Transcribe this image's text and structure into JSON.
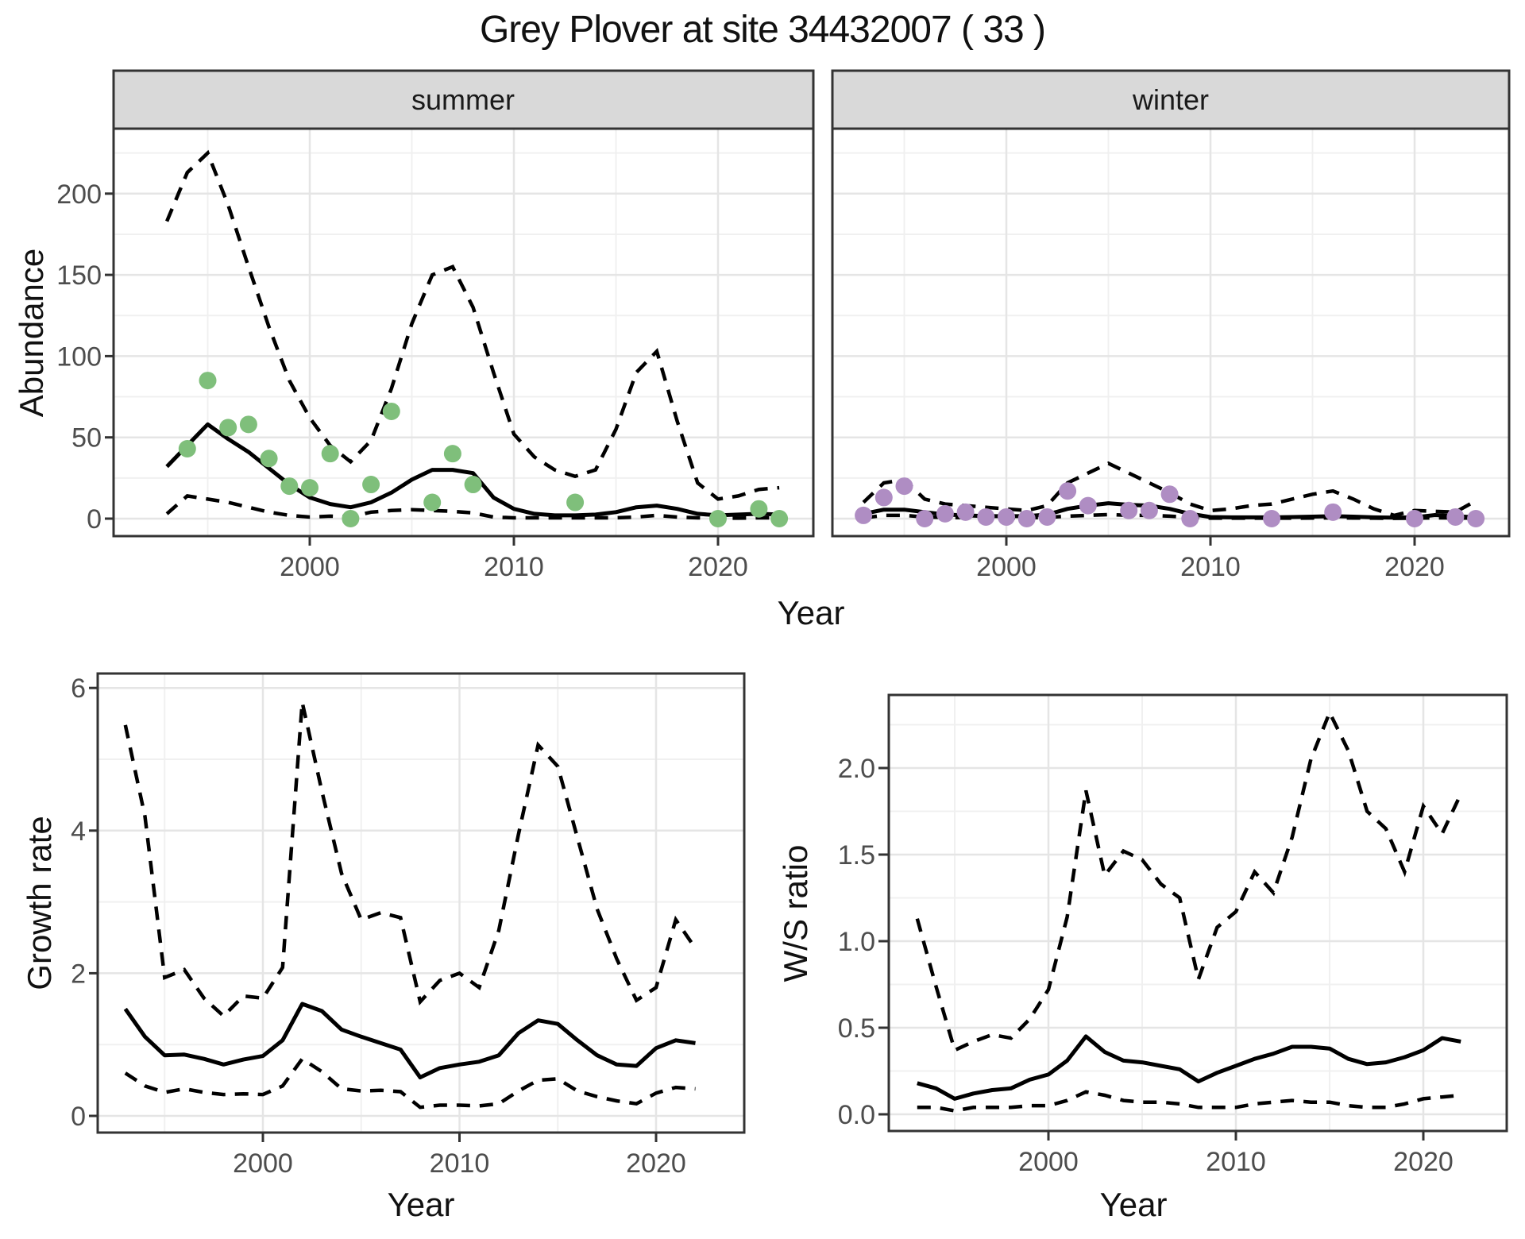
{
  "title": "Grey Plover at site 34432007 ( 33 )",
  "colors": {
    "summer_point": "#7fbf7b",
    "winter_point": "#af8dc3",
    "line": "#000000",
    "panel_border": "#333333",
    "strip_bg": "#d9d9d9",
    "grid_major": "#e5e5e5",
    "grid_minor": "#f0f0f0",
    "tick_text": "#4d4d4d",
    "tick_mark": "#333333"
  },
  "chart_data": [
    {
      "id": "abundance",
      "type": "line",
      "facets": [
        "summer",
        "winter"
      ],
      "xlabel": "Year",
      "ylabel": "Abundance",
      "x_ticks": [
        2000,
        2010,
        2020
      ],
      "x_tick_labels": [
        "2000",
        "2010",
        "2020"
      ],
      "x_minor": [
        1995,
        2005,
        2015,
        2025
      ],
      "y_ticks": [
        0,
        50,
        100,
        150,
        200
      ],
      "y_tick_labels": [
        "0",
        "50",
        "100",
        "150",
        "200"
      ],
      "y_minor": [
        25,
        75,
        125,
        175,
        225
      ],
      "xlim": [
        1990.4,
        2024.7
      ],
      "ylim": [
        -11,
        240
      ],
      "legend": "none",
      "grid": "on",
      "years": [
        1993,
        1994,
        1995,
        1996,
        1997,
        1998,
        1999,
        2000,
        2001,
        2002,
        2003,
        2004,
        2005,
        2006,
        2007,
        2008,
        2009,
        2010,
        2011,
        2012,
        2013,
        2014,
        2015,
        2016,
        2017,
        2018,
        2019,
        2020,
        2021,
        2022,
        2023
      ],
      "summer": {
        "upper": [
          183,
          213,
          225,
          193,
          155,
          118,
          85,
          62,
          45,
          35,
          48,
          80,
          120,
          150,
          155,
          130,
          90,
          52,
          38,
          30,
          26,
          30,
          55,
          90,
          103,
          60,
          22,
          12,
          14,
          18,
          19
        ],
        "mean": [
          32,
          45,
          58,
          49,
          41,
          31,
          21,
          13,
          9,
          7,
          10,
          16,
          24,
          30,
          30,
          28,
          13,
          6,
          3,
          2,
          2,
          2.5,
          4,
          7,
          8,
          6,
          3,
          2,
          2.5,
          3,
          2.5
        ],
        "lower": [
          3,
          14,
          12,
          10,
          7,
          4,
          2,
          1,
          1.5,
          1,
          4,
          5,
          5.5,
          5,
          4.5,
          3.5,
          1,
          0.5,
          0.5,
          0.5,
          0.5,
          0.5,
          0.5,
          1,
          2,
          1,
          0.5,
          0.3,
          0.3,
          0.5,
          0.5
        ],
        "points_years": [
          1994,
          1995,
          1996,
          1997,
          1998,
          1999,
          2000,
          2001,
          2002,
          2003,
          2004,
          2006,
          2007,
          2008,
          2013,
          2020,
          2022,
          2023
        ],
        "points_values": [
          43,
          85,
          56,
          58,
          37,
          20,
          19,
          40,
          0,
          21,
          66,
          10,
          40,
          21,
          10,
          0,
          6,
          0
        ]
      },
      "winter": {
        "upper": [
          10,
          22,
          24,
          12,
          9,
          8,
          7,
          6,
          5,
          8,
          22,
          28,
          34,
          28,
          22,
          16,
          9,
          5,
          6,
          8,
          9,
          12,
          15,
          17,
          12,
          6,
          2,
          5,
          4.5,
          4,
          11
        ],
        "mean": [
          3,
          5.5,
          5.5,
          4,
          2.5,
          2,
          1.5,
          1.5,
          1.5,
          2.5,
          6,
          8,
          9.5,
          8.5,
          8,
          6,
          3,
          1,
          0.8,
          0.8,
          0.8,
          1,
          1.2,
          1.5,
          1.2,
          0.8,
          0.6,
          0.8,
          2.2,
          1.5,
          0.8
        ],
        "lower": [
          0.5,
          2,
          2,
          1,
          0.8,
          0.6,
          0.5,
          0.5,
          0.5,
          0.8,
          1.5,
          2,
          2.5,
          2,
          2,
          1.5,
          0.8,
          0.3,
          0.3,
          0.3,
          0.3,
          0.3,
          0.4,
          0.5,
          0.4,
          0.3,
          0.2,
          0.3,
          0.5,
          0.4,
          0.3
        ],
        "points_years": [
          1993,
          1994,
          1995,
          1996,
          1997,
          1998,
          1999,
          2000,
          2001,
          2002,
          2003,
          2004,
          2006,
          2007,
          2008,
          2009,
          2013,
          2016,
          2020,
          2022,
          2023
        ],
        "points_values": [
          2,
          13,
          20,
          0,
          3,
          4,
          1,
          1,
          0,
          1,
          17,
          8,
          5,
          5,
          15,
          0,
          0,
          4,
          0,
          1,
          0
        ]
      }
    },
    {
      "id": "growth_rate",
      "type": "line",
      "xlabel": "Year",
      "ylabel": "Growth rate",
      "x_ticks": [
        2000,
        2010,
        2020
      ],
      "x_tick_labels": [
        "2000",
        "2010",
        "2020"
      ],
      "x_minor": [
        1995,
        2005,
        2015,
        2025
      ],
      "y_ticks": [
        0,
        2,
        4,
        6
      ],
      "y_tick_labels": [
        "0",
        "2",
        "4",
        "6"
      ],
      "y_minor": [
        1,
        3,
        5
      ],
      "xlim": [
        1991.6,
        2024.5
      ],
      "ylim": [
        -0.23,
        6.2
      ],
      "grid": "on",
      "years": [
        1993,
        1994,
        1995,
        1996,
        1997,
        1998,
        1999,
        2000,
        2001,
        2002,
        2003,
        2004,
        2005,
        2006,
        2007,
        2008,
        2009,
        2010,
        2011,
        2012,
        2013,
        2014,
        2015,
        2016,
        2017,
        2018,
        2019,
        2020,
        2021,
        2022
      ],
      "upper": [
        5.48,
        4.2,
        1.94,
        2.05,
        1.65,
        1.4,
        1.68,
        1.65,
        2.08,
        5.8,
        4.55,
        3.4,
        2.75,
        2.85,
        2.78,
        1.6,
        1.9,
        2.0,
        1.8,
        2.6,
        3.95,
        5.2,
        4.9,
        3.9,
        2.9,
        2.2,
        1.62,
        1.8,
        2.75,
        2.35
      ],
      "mean": [
        1.5,
        1.11,
        0.85,
        0.86,
        0.8,
        0.72,
        0.79,
        0.84,
        1.06,
        1.57,
        1.47,
        1.21,
        1.11,
        1.02,
        0.93,
        0.54,
        0.67,
        0.72,
        0.76,
        0.85,
        1.16,
        1.34,
        1.29,
        1.06,
        0.85,
        0.72,
        0.7,
        0.95,
        1.06,
        1.02
      ],
      "lower": [
        0.6,
        0.42,
        0.33,
        0.38,
        0.33,
        0.3,
        0.31,
        0.3,
        0.42,
        0.8,
        0.62,
        0.38,
        0.35,
        0.36,
        0.34,
        0.12,
        0.15,
        0.15,
        0.14,
        0.17,
        0.35,
        0.5,
        0.52,
        0.35,
        0.27,
        0.21,
        0.17,
        0.32,
        0.4,
        0.38
      ]
    },
    {
      "id": "ws_ratio",
      "type": "line",
      "xlabel": "Year",
      "ylabel": "W/S ratio",
      "x_ticks": [
        2000,
        2010,
        2020
      ],
      "x_tick_labels": [
        "2000",
        "2010",
        "2020"
      ],
      "x_minor": [
        1995,
        2005,
        2015,
        2025
      ],
      "y_ticks": [
        0.0,
        0.5,
        1.0,
        1.5,
        2.0
      ],
      "y_tick_labels": [
        "0.0",
        "0.5",
        "1.0",
        "1.5",
        "2.0"
      ],
      "y_minor": [
        0.25,
        0.75,
        1.25,
        1.75,
        2.25
      ],
      "xlim": [
        1991.5,
        2024.5
      ],
      "ylim": [
        -0.1,
        2.42
      ],
      "grid": "on",
      "years": [
        1993,
        1994,
        1995,
        1996,
        1997,
        1998,
        1999,
        2000,
        2001,
        2002,
        2003,
        2004,
        2005,
        2006,
        2007,
        2008,
        2009,
        2010,
        2011,
        2012,
        2013,
        2014,
        2015,
        2016,
        2017,
        2018,
        2019,
        2020,
        2021,
        2022
      ],
      "upper": [
        1.13,
        0.74,
        0.37,
        0.42,
        0.46,
        0.44,
        0.55,
        0.72,
        1.14,
        1.87,
        1.38,
        1.52,
        1.47,
        1.33,
        1.25,
        0.78,
        1.08,
        1.17,
        1.4,
        1.28,
        1.6,
        2.05,
        2.32,
        2.1,
        1.75,
        1.65,
        1.4,
        1.78,
        1.62,
        1.85
      ],
      "mean": [
        0.18,
        0.15,
        0.09,
        0.12,
        0.14,
        0.15,
        0.2,
        0.23,
        0.31,
        0.45,
        0.36,
        0.31,
        0.3,
        0.28,
        0.26,
        0.19,
        0.24,
        0.28,
        0.32,
        0.35,
        0.39,
        0.39,
        0.38,
        0.32,
        0.29,
        0.3,
        0.33,
        0.37,
        0.44,
        0.42
      ],
      "lower": [
        0.04,
        0.04,
        0.02,
        0.04,
        0.04,
        0.04,
        0.05,
        0.05,
        0.08,
        0.13,
        0.11,
        0.08,
        0.07,
        0.07,
        0.06,
        0.04,
        0.04,
        0.04,
        0.06,
        0.07,
        0.08,
        0.07,
        0.07,
        0.05,
        0.04,
        0.04,
        0.06,
        0.09,
        0.1,
        0.11
      ]
    }
  ]
}
